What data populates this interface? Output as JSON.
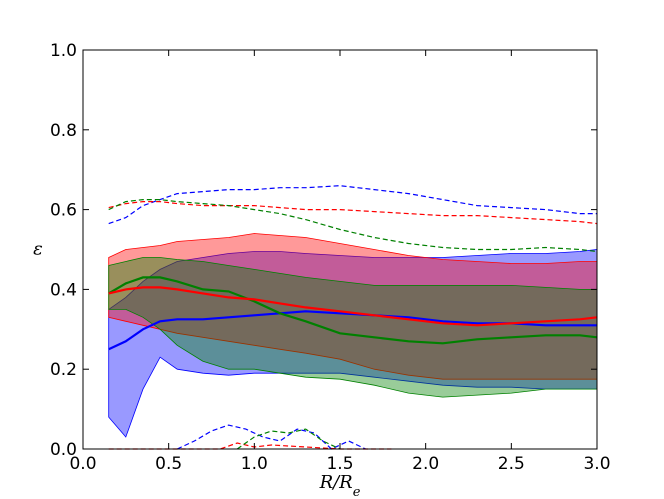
{
  "chart_data": {
    "type": "line",
    "xlabel": "R/R_e",
    "ylabel": "ε",
    "xlim": [
      0.0,
      3.0
    ],
    "ylim": [
      0.0,
      1.0
    ],
    "xticks": [
      0.0,
      0.5,
      1.0,
      1.5,
      2.0,
      2.5,
      3.0
    ],
    "xtick_labels": [
      "0.0",
      "0.5",
      "1.0",
      "1.5",
      "2.0",
      "2.5",
      "3.0"
    ],
    "yticks": [
      0.0,
      0.2,
      0.4,
      0.6,
      0.8,
      1.0
    ],
    "ytick_labels": [
      "0.0",
      "0.2",
      "0.4",
      "0.6",
      "0.8",
      "1.0"
    ],
    "grid": false,
    "legend": "none",
    "series": [
      {
        "color": "#0000ff",
        "x": [
          0.15,
          0.25,
          0.35,
          0.45,
          0.55,
          0.7,
          0.85,
          1.0,
          1.15,
          1.3,
          1.5,
          1.7,
          1.9,
          2.1,
          2.3,
          2.5,
          2.7,
          2.9,
          3.0
        ],
        "median": [
          0.25,
          0.27,
          0.3,
          0.32,
          0.325,
          0.325,
          0.33,
          0.335,
          0.34,
          0.345,
          0.34,
          0.335,
          0.33,
          0.32,
          0.315,
          0.315,
          0.31,
          0.31,
          0.31
        ],
        "band_low": [
          0.08,
          0.03,
          0.15,
          0.23,
          0.2,
          0.19,
          0.185,
          0.19,
          0.19,
          0.19,
          0.19,
          0.18,
          0.17,
          0.16,
          0.155,
          0.155,
          0.15,
          0.15,
          0.15
        ],
        "band_high": [
          0.35,
          0.38,
          0.42,
          0.45,
          0.47,
          0.48,
          0.49,
          0.495,
          0.495,
          0.49,
          0.485,
          0.48,
          0.48,
          0.48,
          0.485,
          0.49,
          0.49,
          0.495,
          0.5
        ],
        "dash_high": [
          0.565,
          0.58,
          0.61,
          0.625,
          0.64,
          0.645,
          0.65,
          0.65,
          0.655,
          0.655,
          0.66,
          0.65,
          0.64,
          0.625,
          0.61,
          0.605,
          0.6,
          0.59,
          0.59
        ],
        "dash_low_x": [
          0.55,
          0.65,
          0.75,
          0.85,
          0.95,
          1.05,
          1.15,
          1.25,
          1.35,
          1.45,
          1.55,
          1.65
        ],
        "dash_low": [
          0.0,
          0.02,
          0.045,
          0.06,
          0.05,
          0.03,
          0.02,
          0.05,
          0.04,
          0.0,
          0.02,
          0.0
        ]
      },
      {
        "color": "#ff0000",
        "x": [
          0.15,
          0.25,
          0.35,
          0.45,
          0.55,
          0.7,
          0.85,
          1.0,
          1.15,
          1.3,
          1.5,
          1.7,
          1.9,
          2.1,
          2.3,
          2.5,
          2.7,
          2.9,
          3.0
        ],
        "median": [
          0.39,
          0.4,
          0.405,
          0.405,
          0.4,
          0.39,
          0.38,
          0.375,
          0.365,
          0.355,
          0.345,
          0.335,
          0.325,
          0.315,
          0.31,
          0.315,
          0.32,
          0.325,
          0.33
        ],
        "band_low": [
          0.33,
          0.32,
          0.31,
          0.3,
          0.29,
          0.28,
          0.27,
          0.26,
          0.25,
          0.24,
          0.225,
          0.2,
          0.185,
          0.175,
          0.175,
          0.175,
          0.175,
          0.175,
          0.175
        ],
        "band_high": [
          0.48,
          0.5,
          0.505,
          0.51,
          0.52,
          0.525,
          0.53,
          0.54,
          0.535,
          0.53,
          0.515,
          0.5,
          0.485,
          0.475,
          0.47,
          0.465,
          0.465,
          0.47,
          0.47
        ],
        "dash_high": [
          0.605,
          0.615,
          0.62,
          0.62,
          0.615,
          0.61,
          0.61,
          0.61,
          0.605,
          0.6,
          0.6,
          0.595,
          0.59,
          0.585,
          0.585,
          0.58,
          0.575,
          0.57,
          0.565
        ],
        "dash_low_x": [
          0.15,
          0.5,
          0.8,
          0.9,
          1.0,
          1.1,
          1.3,
          1.5,
          1.7,
          1.8
        ],
        "dash_low": [
          0.0,
          0.0,
          0.0,
          0.015,
          0.005,
          0.01,
          0.005,
          0.0,
          0.0,
          0.0
        ]
      },
      {
        "color": "#008000",
        "x": [
          0.15,
          0.25,
          0.35,
          0.45,
          0.55,
          0.7,
          0.85,
          1.0,
          1.15,
          1.3,
          1.5,
          1.7,
          1.9,
          2.1,
          2.3,
          2.5,
          2.7,
          2.9,
          3.0
        ],
        "median": [
          0.39,
          0.415,
          0.43,
          0.43,
          0.42,
          0.4,
          0.395,
          0.37,
          0.34,
          0.32,
          0.29,
          0.28,
          0.27,
          0.265,
          0.275,
          0.28,
          0.285,
          0.285,
          0.28
        ],
        "band_low": [
          0.35,
          0.35,
          0.33,
          0.3,
          0.26,
          0.22,
          0.2,
          0.2,
          0.19,
          0.18,
          0.175,
          0.16,
          0.14,
          0.13,
          0.135,
          0.14,
          0.15,
          0.15,
          0.15
        ],
        "band_high": [
          0.46,
          0.47,
          0.48,
          0.48,
          0.475,
          0.47,
          0.46,
          0.45,
          0.44,
          0.43,
          0.42,
          0.41,
          0.41,
          0.41,
          0.41,
          0.41,
          0.405,
          0.4,
          0.4
        ],
        "dash_high": [
          0.6,
          0.62,
          0.625,
          0.625,
          0.62,
          0.615,
          0.61,
          0.6,
          0.59,
          0.575,
          0.55,
          0.53,
          0.515,
          0.505,
          0.5,
          0.5,
          0.505,
          0.5,
          0.495
        ],
        "dash_low_x": [
          0.9,
          1.0,
          1.1,
          1.2,
          1.3,
          1.4,
          1.5
        ],
        "dash_low": [
          0.0,
          0.03,
          0.045,
          0.04,
          0.05,
          0.02,
          0.0
        ]
      }
    ]
  }
}
